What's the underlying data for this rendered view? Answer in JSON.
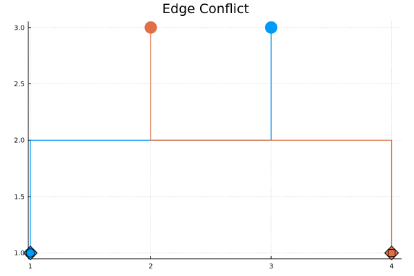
{
  "chart_data": {
    "type": "line",
    "title": "Edge Conflict",
    "xlabel": "",
    "ylabel": "",
    "xlim": [
      0.983,
      4.083
    ],
    "ylim": [
      0.949,
      3.054
    ],
    "grid": true,
    "legend": "none",
    "x_ticks": [
      1,
      2,
      3,
      4
    ],
    "x_tick_labels": [
      "1",
      "2",
      "3",
      "4"
    ],
    "y_ticks": [
      1.0,
      1.5,
      2.0,
      2.5,
      3.0
    ],
    "y_tick_labels": [
      "1.0",
      "1.5",
      "2.0",
      "2.5",
      "3.0"
    ],
    "series": [
      {
        "color": "#009af9",
        "path": [
          [
            1,
            1
          ],
          [
            1,
            2
          ],
          [
            3,
            2
          ],
          [
            3,
            3
          ]
        ],
        "start_marker": "diamond",
        "start_point": [
          1,
          1
        ],
        "end_marker": "circle",
        "end_point": [
          3,
          3
        ]
      },
      {
        "color": "#e26f46",
        "path": [
          [
            4,
            1
          ],
          [
            4,
            2
          ],
          [
            2,
            2
          ],
          [
            2,
            3
          ]
        ],
        "start_marker": "diamond",
        "start_point": [
          4,
          1
        ],
        "end_marker": "circle",
        "end_point": [
          2,
          3
        ]
      }
    ],
    "extra_markers": [
      {
        "shape": "circle",
        "point": [
          1,
          1
        ],
        "color": "#009af9"
      },
      {
        "shape": "square",
        "point": [
          4,
          1
        ],
        "color": "#e26f46"
      }
    ]
  }
}
